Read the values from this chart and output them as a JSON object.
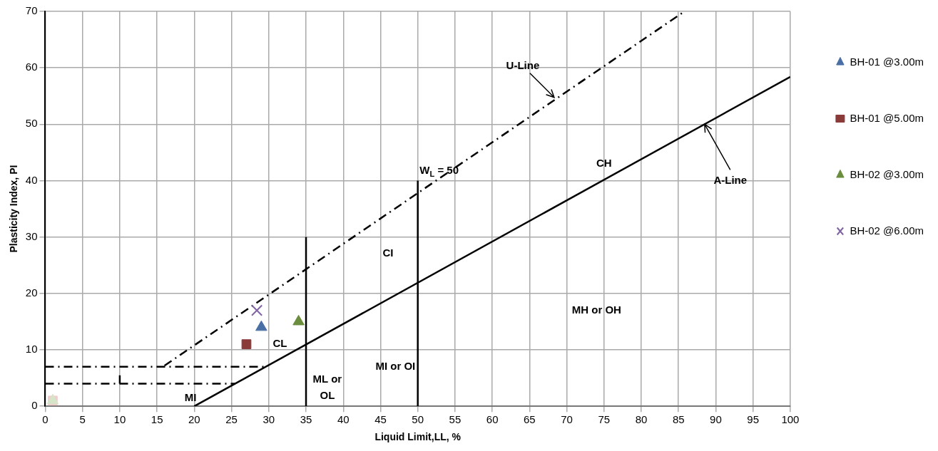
{
  "chart_data": {
    "type": "scatter",
    "xlabel": "Liquid Limit,LL, %",
    "ylabel": "Plasticity Index, PI",
    "xlim": [
      0,
      100
    ],
    "xticks": [
      0,
      5,
      10,
      15,
      20,
      25,
      30,
      35,
      40,
      45,
      50,
      55,
      60,
      65,
      70,
      75,
      80,
      85,
      90,
      95,
      100
    ],
    "ylim": [
      0,
      70
    ],
    "yticks": [
      0,
      10,
      20,
      30,
      40,
      50,
      60,
      70
    ],
    "grid": true,
    "legend": "right",
    "series": [
      {
        "name": "BH-01 @3.00m",
        "color": "#4a6fa5",
        "marker": "triangle",
        "x": [
          29
        ],
        "values": [
          14
        ]
      },
      {
        "name": "BH-01 @5.00m",
        "color": "#8b3a3a",
        "marker": "square",
        "x": [
          27
        ],
        "values": [
          11
        ]
      },
      {
        "name": "BH-02 @3.00m",
        "color": "#6b8e3e",
        "marker": "triangle",
        "x": [
          34
        ],
        "values": [
          15
        ]
      },
      {
        "name": "BH-02 @6.00m",
        "color": "#8064a2",
        "marker": "cross",
        "x": [
          28.4
        ],
        "values": [
          17
        ]
      },
      {
        "color": "#d6e4c8",
        "marker": "triangle",
        "x": [
          1
        ],
        "values": [
          1
        ]
      },
      {
        "color": "#f0cccc",
        "marker": "square",
        "x": [
          1
        ],
        "values": [
          1
        ]
      },
      {
        "type": "line",
        "color": "#000000",
        "marker": "none",
        "line_style": "solid",
        "x": [
          20,
          100
        ],
        "values": [
          0,
          58.4
        ]
      },
      {
        "type": "line",
        "color": "#000000",
        "marker": "none",
        "line_style": "dashed",
        "x": [
          16,
          85.8
        ],
        "values": [
          7.2,
          70
        ]
      },
      {
        "type": "line",
        "color": "#000000",
        "marker": "none",
        "line_style": "solid",
        "x": [
          35,
          35
        ],
        "values": [
          0,
          30
        ]
      },
      {
        "type": "line",
        "color": "#000000",
        "marker": "none",
        "line_style": "solid",
        "x": [
          50,
          50
        ],
        "values": [
          0,
          40
        ]
      },
      {
        "type": "line",
        "color": "#000000",
        "marker": "none",
        "line_style": "dashed",
        "x": [
          0,
          29.3
        ],
        "values": [
          7,
          7
        ]
      },
      {
        "type": "line",
        "color": "#000000",
        "marker": "none",
        "line_style": "dashed",
        "x": [
          0,
          25.5
        ],
        "values": [
          4,
          4
        ]
      },
      {
        "type": "line",
        "color": "#000000",
        "marker": "none",
        "line_style": "solid",
        "x": [
          10,
          10
        ],
        "values": [
          4,
          5.5
        ]
      }
    ],
    "annotations": [
      {
        "text": "U-Line",
        "x": 68.5,
        "y": 54.5
      },
      {
        "text": "A-Line",
        "x": 88.5,
        "y": 50
      },
      {
        "text": "W$_{L}$ = 50",
        "x": 50,
        "y": 40
      },
      "CH",
      "CI",
      "CL",
      "MH or OH",
      "MI or OI",
      {
        "text": "ML or",
        "x": 35,
        "y": 3
      },
      {
        "text": "OL",
        "x": 35,
        "y": 0
      },
      "MI"
    ]
  }
}
